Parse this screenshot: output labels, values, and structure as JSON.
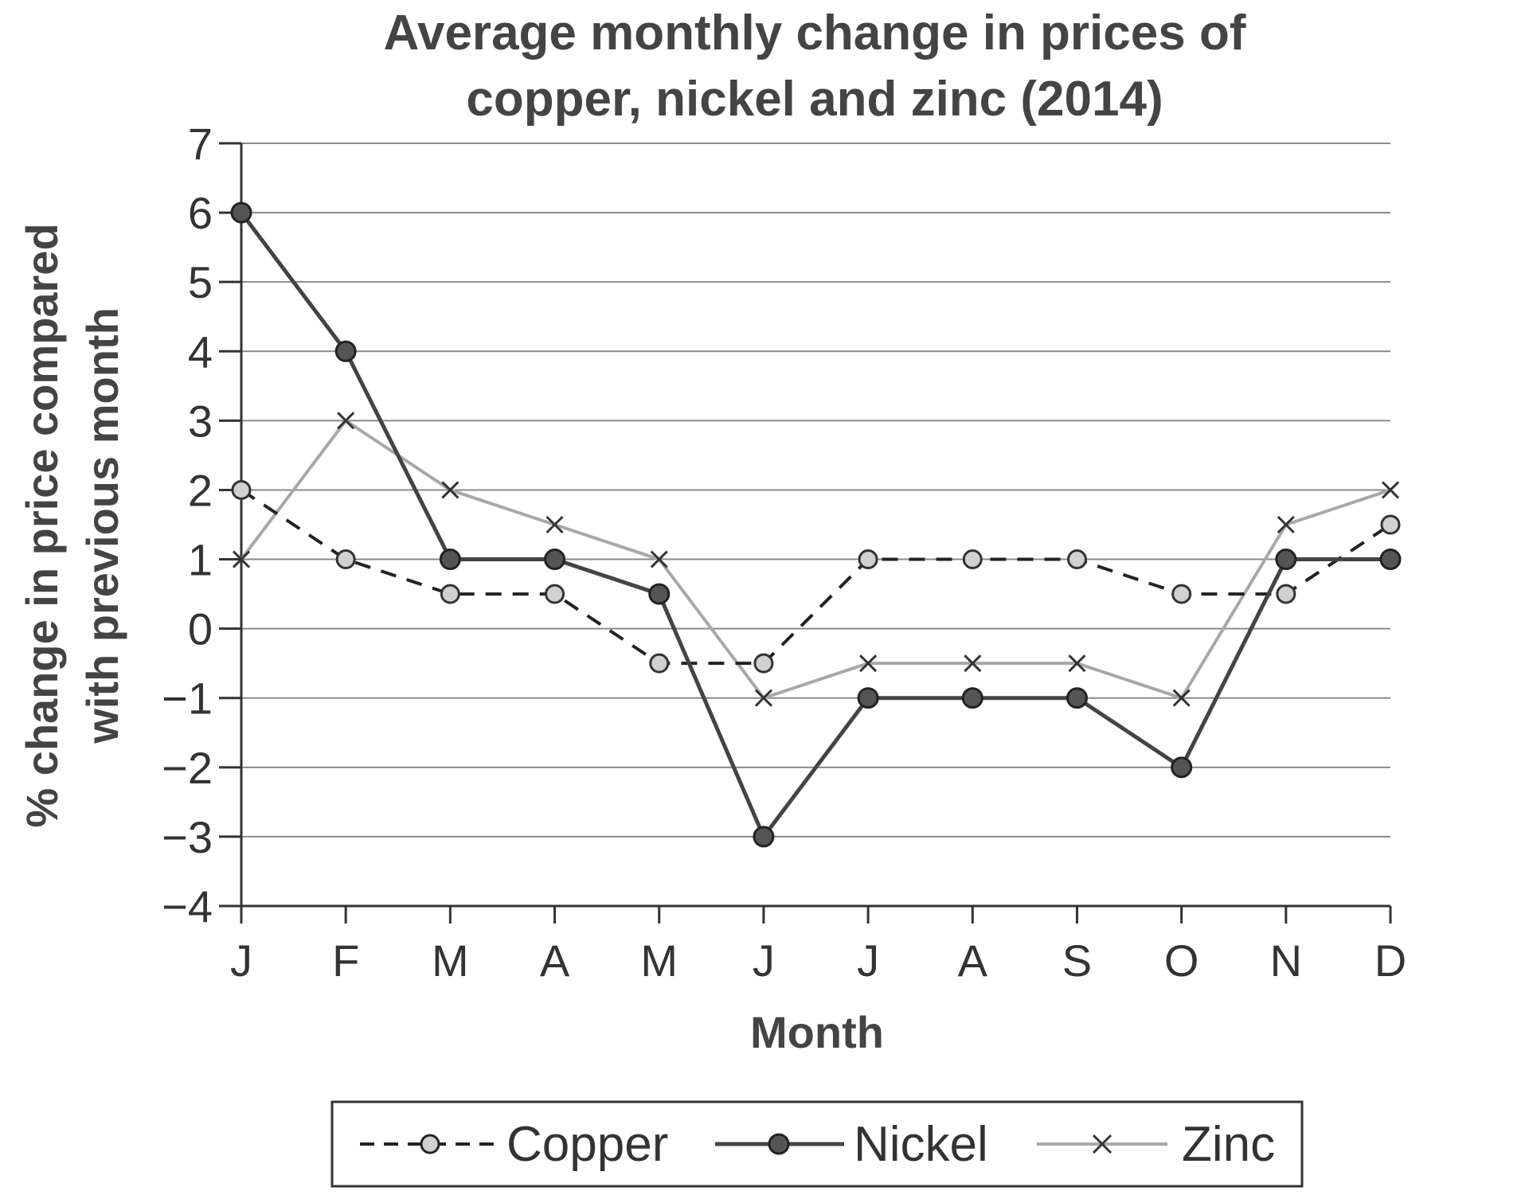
{
  "chart_data": {
    "type": "line",
    "title_lines": [
      "Average monthly change in prices of",
      "copper, nickel and zinc (2014)"
    ],
    "xlabel": "Month",
    "ylabel_lines": [
      "% change in price compared",
      "with previous month"
    ],
    "categories": [
      "J",
      "F",
      "M",
      "A",
      "M",
      "J",
      "J",
      "A",
      "S",
      "O",
      "N",
      "D"
    ],
    "ylim": [
      -4,
      7
    ],
    "yticks": [
      7,
      6,
      5,
      4,
      3,
      2,
      1,
      0,
      -1,
      -2,
      -3,
      -4
    ],
    "ytick_labels": [
      "7",
      "6",
      "5",
      "4",
      "3",
      "2",
      "1",
      "0",
      "−1",
      "−2",
      "−3",
      "−4"
    ],
    "grid": true,
    "legend_position": "bottom",
    "series": [
      {
        "name": "Copper",
        "style": "dashed",
        "marker": "circle-light",
        "values": [
          2,
          1,
          0.5,
          0.5,
          -0.5,
          -0.5,
          1,
          1,
          1,
          0.5,
          0.5,
          1.5
        ]
      },
      {
        "name": "Nickel",
        "style": "solid-dark",
        "marker": "circle-dark",
        "values": [
          6,
          4,
          1,
          1,
          0.5,
          -3,
          -1,
          -1,
          -1,
          -2,
          1,
          1
        ]
      },
      {
        "name": "Zinc",
        "style": "solid-light",
        "marker": "x",
        "values": [
          1,
          3,
          2,
          1.5,
          1,
          -1,
          -0.5,
          -0.5,
          -0.5,
          -1,
          1.5,
          2
        ]
      }
    ]
  },
  "colors": {
    "text": "#333333",
    "title": "#444444",
    "grid": "#8a8a8a",
    "axis": "#333333",
    "copper_line": "#222222",
    "copper_marker_fill": "#d0d0d0",
    "nickel_line": "#444444",
    "nickel_marker_fill": "#555555",
    "zinc_line": "#a8a8a8",
    "zinc_marker": "#333333"
  }
}
